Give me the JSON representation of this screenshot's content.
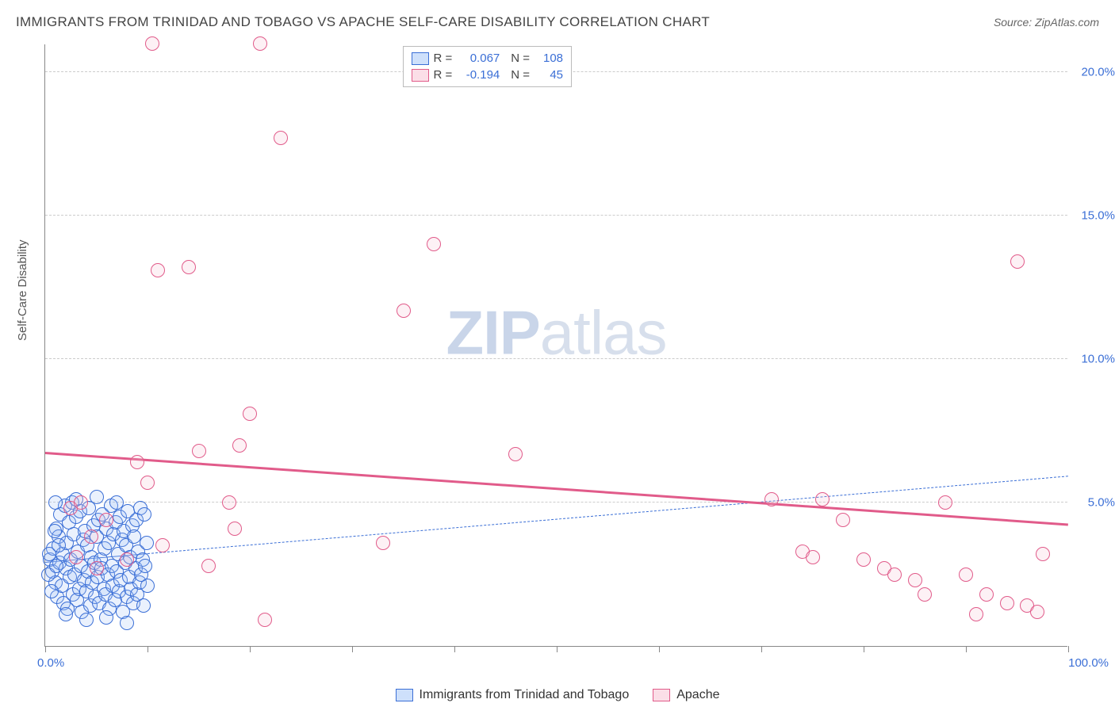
{
  "title": "IMMIGRANTS FROM TRINIDAD AND TOBAGO VS APACHE SELF-CARE DISABILITY CORRELATION CHART",
  "source_label": "Source: ZipAtlas.com",
  "y_axis_title": "Self-Care Disability",
  "watermark": {
    "part1": "ZIP",
    "part2": "atlas"
  },
  "chart": {
    "type": "scatter",
    "xlim": [
      0,
      100
    ],
    "ylim": [
      0,
      21
    ],
    "x_ticks_minor": [
      0,
      10,
      20,
      30,
      40,
      50,
      60,
      70,
      80,
      90,
      100
    ],
    "x_ticks_labels": [
      {
        "pos": 0,
        "label": "0.0%"
      },
      {
        "pos": 100,
        "label": "100.0%"
      }
    ],
    "y_ticks": [
      {
        "pos": 5,
        "label": "5.0%"
      },
      {
        "pos": 10,
        "label": "10.0%"
      },
      {
        "pos": 15,
        "label": "15.0%"
      },
      {
        "pos": 20,
        "label": "20.0%"
      }
    ],
    "grid_color": "#cccccc",
    "background_color": "#ffffff",
    "marker_radius": 9,
    "marker_fill_opacity": 0.22,
    "marker_stroke_width": 1.2,
    "series": [
      {
        "name": "Immigrants from Trinidad and Tobago",
        "color_fill": "#9ec1f7",
        "color_stroke": "#3b6fd6",
        "R": "0.067",
        "N": "108",
        "trend": {
          "x1": 0,
          "y1": 2.9,
          "x2": 100,
          "y2": 5.9,
          "color": "#3b6fd6",
          "dash": true,
          "width": 1.5,
          "solid_until_x": 10
        },
        "points": [
          [
            0.5,
            3.0
          ],
          [
            0.7,
            2.6
          ],
          [
            0.8,
            3.4
          ],
          [
            1.0,
            2.2
          ],
          [
            1.1,
            4.1
          ],
          [
            1.2,
            1.7
          ],
          [
            1.3,
            3.8
          ],
          [
            1.4,
            2.9
          ],
          [
            1.5,
            4.6
          ],
          [
            1.6,
            2.1
          ],
          [
            1.7,
            3.2
          ],
          [
            1.8,
            1.5
          ],
          [
            1.9,
            4.9
          ],
          [
            2.0,
            2.7
          ],
          [
            2.1,
            3.6
          ],
          [
            2.2,
            1.3
          ],
          [
            2.3,
            4.3
          ],
          [
            2.4,
            2.4
          ],
          [
            2.5,
            3.0
          ],
          [
            2.6,
            5.0
          ],
          [
            2.7,
            1.8
          ],
          [
            2.8,
            3.9
          ],
          [
            2.9,
            2.5
          ],
          [
            3.0,
            4.5
          ],
          [
            3.1,
            1.6
          ],
          [
            3.2,
            3.3
          ],
          [
            3.3,
            2.0
          ],
          [
            3.4,
            4.7
          ],
          [
            3.5,
            2.8
          ],
          [
            3.6,
            1.2
          ],
          [
            3.7,
            3.7
          ],
          [
            3.8,
            2.3
          ],
          [
            3.9,
            4.0
          ],
          [
            4.0,
            1.9
          ],
          [
            4.1,
            3.5
          ],
          [
            4.2,
            2.6
          ],
          [
            4.3,
            4.8
          ],
          [
            4.4,
            1.4
          ],
          [
            4.5,
            3.1
          ],
          [
            4.6,
            2.2
          ],
          [
            4.7,
            4.2
          ],
          [
            4.8,
            2.9
          ],
          [
            4.9,
            1.7
          ],
          [
            5.0,
            3.8
          ],
          [
            5.1,
            2.4
          ],
          [
            5.2,
            4.4
          ],
          [
            5.3,
            1.5
          ],
          [
            5.4,
            3.0
          ],
          [
            5.5,
            2.7
          ],
          [
            5.6,
            4.6
          ],
          [
            5.7,
            2.0
          ],
          [
            5.8,
            3.4
          ],
          [
            5.9,
            1.8
          ],
          [
            6.0,
            4.1
          ],
          [
            6.1,
            2.5
          ],
          [
            6.2,
            3.6
          ],
          [
            6.3,
            1.3
          ],
          [
            6.4,
            4.9
          ],
          [
            6.5,
            2.8
          ],
          [
            6.6,
            2.1
          ],
          [
            6.7,
            3.9
          ],
          [
            6.8,
            1.6
          ],
          [
            6.9,
            4.3
          ],
          [
            7.0,
            2.6
          ],
          [
            7.1,
            3.2
          ],
          [
            7.2,
            1.9
          ],
          [
            7.3,
            4.5
          ],
          [
            7.4,
            2.3
          ],
          [
            7.5,
            3.7
          ],
          [
            7.6,
            1.2
          ],
          [
            7.7,
            4.0
          ],
          [
            7.8,
            2.9
          ],
          [
            7.9,
            3.5
          ],
          [
            8.0,
            1.7
          ],
          [
            8.1,
            4.7
          ],
          [
            8.2,
            2.4
          ],
          [
            8.3,
            3.1
          ],
          [
            8.4,
            2.0
          ],
          [
            8.5,
            4.2
          ],
          [
            8.6,
            1.5
          ],
          [
            8.7,
            3.8
          ],
          [
            8.8,
            2.7
          ],
          [
            8.9,
            4.4
          ],
          [
            9.0,
            1.8
          ],
          [
            9.1,
            3.3
          ],
          [
            9.2,
            2.2
          ],
          [
            9.3,
            4.8
          ],
          [
            9.4,
            2.5
          ],
          [
            9.5,
            3.0
          ],
          [
            9.6,
            1.4
          ],
          [
            9.7,
            4.6
          ],
          [
            9.8,
            2.8
          ],
          [
            9.9,
            3.6
          ],
          [
            10.0,
            2.1
          ],
          [
            1.0,
            5.0
          ],
          [
            2.0,
            1.1
          ],
          [
            3.0,
            5.1
          ],
          [
            4.0,
            0.9
          ],
          [
            5.0,
            5.2
          ],
          [
            6.0,
            1.0
          ],
          [
            7.0,
            5.0
          ],
          [
            8.0,
            0.8
          ],
          [
            0.3,
            2.5
          ],
          [
            0.4,
            3.2
          ],
          [
            0.6,
            1.9
          ],
          [
            0.9,
            4.0
          ],
          [
            1.1,
            2.8
          ],
          [
            1.3,
            3.5
          ]
        ]
      },
      {
        "name": "Apache",
        "color_fill": "#f7bdd0",
        "color_stroke": "#e15b8a",
        "R": "-0.194",
        "N": "45",
        "trend": {
          "x1": 0,
          "y1": 6.7,
          "x2": 100,
          "y2": 4.2,
          "color": "#e15b8a",
          "dash": false,
          "width": 3
        },
        "points": [
          [
            2.5,
            4.8
          ],
          [
            3.0,
            3.1
          ],
          [
            3.5,
            5.0
          ],
          [
            4.5,
            3.8
          ],
          [
            5.0,
            2.7
          ],
          [
            6.0,
            4.4
          ],
          [
            8.0,
            3.0
          ],
          [
            9.0,
            6.4
          ],
          [
            10.0,
            5.7
          ],
          [
            10.5,
            21.0
          ],
          [
            11.0,
            13.1
          ],
          [
            11.5,
            3.5
          ],
          [
            14.0,
            13.2
          ],
          [
            15.0,
            6.8
          ],
          [
            16.0,
            2.8
          ],
          [
            18.0,
            5.0
          ],
          [
            18.5,
            4.1
          ],
          [
            19.0,
            7.0
          ],
          [
            20.0,
            8.1
          ],
          [
            21.0,
            21.0
          ],
          [
            21.5,
            0.9
          ],
          [
            23.0,
            17.7
          ],
          [
            33.0,
            3.6
          ],
          [
            35.0,
            11.7
          ],
          [
            38.0,
            14.0
          ],
          [
            46.0,
            6.7
          ],
          [
            71.0,
            5.1
          ],
          [
            74.0,
            3.3
          ],
          [
            75.0,
            3.1
          ],
          [
            76.0,
            5.1
          ],
          [
            78.0,
            4.4
          ],
          [
            80.0,
            3.0
          ],
          [
            82.0,
            2.7
          ],
          [
            83.0,
            2.5
          ],
          [
            85.0,
            2.3
          ],
          [
            86.0,
            1.8
          ],
          [
            88.0,
            5.0
          ],
          [
            90.0,
            2.5
          ],
          [
            91.0,
            1.1
          ],
          [
            92.0,
            1.8
          ],
          [
            94.0,
            1.5
          ],
          [
            95.0,
            13.4
          ],
          [
            96.0,
            1.4
          ],
          [
            97.0,
            1.2
          ],
          [
            97.5,
            3.2
          ]
        ]
      }
    ]
  },
  "bottom_legend": [
    {
      "label": "Immigrants from Trinidad and Tobago",
      "fill": "#9ec1f7",
      "stroke": "#3b6fd6"
    },
    {
      "label": "Apache",
      "fill": "#f7bdd0",
      "stroke": "#e15b8a"
    }
  ]
}
